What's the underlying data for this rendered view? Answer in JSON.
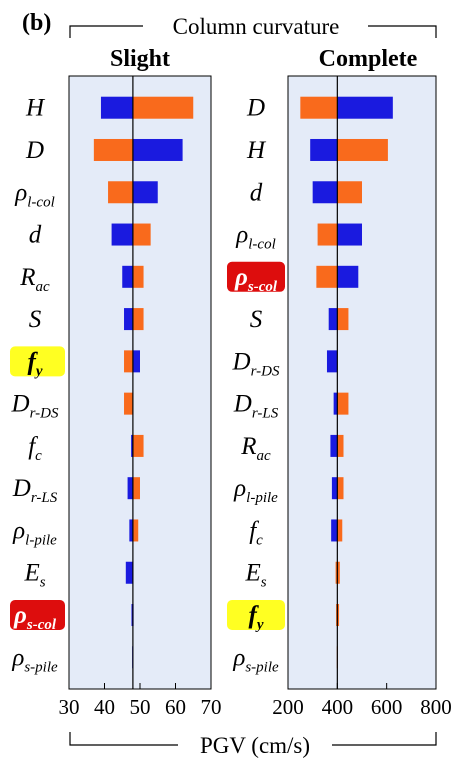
{
  "panel_label": "(b)",
  "group_title": "Column curvature",
  "shared_xlabel": "PGV (cm/s)",
  "colors": {
    "panel_bg": "#e4ebf8",
    "blue": "#1a1adf",
    "orange": "#f96a1c",
    "highlight_yellow": "#ffff22",
    "highlight_red": "#dd0d0d"
  },
  "chart_data": [
    {
      "type": "tornado",
      "title": "Slight",
      "xticks": [
        30,
        40,
        50,
        60,
        70
      ],
      "xlim": [
        30,
        70
      ],
      "baseline": 48,
      "parameters": [
        {
          "label": "H",
          "low": 39,
          "high": 65,
          "low_color": "blue",
          "high_color": "orange"
        },
        {
          "label": "D",
          "low": 37,
          "high": 62,
          "low_color": "orange",
          "high_color": "blue"
        },
        {
          "label": "ρl-col",
          "low": 41,
          "high": 55,
          "low_color": "orange",
          "high_color": "blue"
        },
        {
          "label": "d",
          "low": 42,
          "high": 53,
          "low_color": "blue",
          "high_color": "orange"
        },
        {
          "label": "Rac",
          "low": 45,
          "high": 51,
          "low_color": "blue",
          "high_color": "orange"
        },
        {
          "label": "S",
          "low": 45.5,
          "high": 51,
          "low_color": "blue",
          "high_color": "orange"
        },
        {
          "label": "fy",
          "low": 45.5,
          "high": 50,
          "low_color": "orange",
          "high_color": "blue",
          "highlight": "yellow"
        },
        {
          "label": "Dr-DS",
          "low": 45.5,
          "high": 48,
          "low_color": "orange",
          "high_color": "orange"
        },
        {
          "label": "fc",
          "low": 47.5,
          "high": 51,
          "low_color": "blue",
          "high_color": "orange"
        },
        {
          "label": "Dr-LS",
          "low": 46.5,
          "high": 50,
          "low_color": "blue",
          "high_color": "orange"
        },
        {
          "label": "ρl-pile",
          "low": 47,
          "high": 49.5,
          "low_color": "blue",
          "high_color": "orange"
        },
        {
          "label": "Es",
          "low": 46,
          "high": 48,
          "low_color": "blue",
          "high_color": "blue"
        },
        {
          "label": "ρs-col",
          "low": 47.6,
          "high": 48.2,
          "low_color": "blue",
          "high_color": "blue",
          "highlight": "red"
        },
        {
          "label": "ρs-pile",
          "low": 47.8,
          "high": 48.1,
          "low_color": "blue",
          "high_color": "blue"
        }
      ]
    },
    {
      "type": "tornado",
      "title": "Complete",
      "xticks": [
        200,
        400,
        600,
        800
      ],
      "xlim": [
        200,
        800
      ],
      "baseline": 400,
      "parameters": [
        {
          "label": "D",
          "low": 250,
          "high": 625,
          "low_color": "orange",
          "high_color": "blue"
        },
        {
          "label": "H",
          "low": 290,
          "high": 605,
          "low_color": "blue",
          "high_color": "orange"
        },
        {
          "label": "d",
          "low": 300,
          "high": 500,
          "low_color": "blue",
          "high_color": "orange"
        },
        {
          "label": "ρl-col",
          "low": 320,
          "high": 500,
          "low_color": "orange",
          "high_color": "blue"
        },
        {
          "label": "ρs-col",
          "low": 315,
          "high": 485,
          "low_color": "orange",
          "high_color": "blue",
          "highlight": "red"
        },
        {
          "label": "S",
          "low": 365,
          "high": 445,
          "low_color": "blue",
          "high_color": "orange"
        },
        {
          "label": "Dr-DS",
          "low": 358,
          "high": 395,
          "low_color": "blue",
          "high_color": "orange"
        },
        {
          "label": "Dr-LS",
          "low": 385,
          "high": 445,
          "low_color": "blue",
          "high_color": "orange"
        },
        {
          "label": "Rac",
          "low": 372,
          "high": 425,
          "low_color": "blue",
          "high_color": "orange"
        },
        {
          "label": "ρl-pile",
          "low": 378,
          "high": 425,
          "low_color": "blue",
          "high_color": "orange"
        },
        {
          "label": "fc",
          "low": 375,
          "high": 420,
          "low_color": "blue",
          "high_color": "orange"
        },
        {
          "label": "Es",
          "low": 393,
          "high": 410,
          "low_color": "orange",
          "high_color": "orange"
        },
        {
          "label": "fy",
          "low": 395,
          "high": 407,
          "low_color": "orange",
          "high_color": "orange",
          "highlight": "yellow"
        },
        {
          "label": "ρs-pile",
          "low": 398,
          "high": 402,
          "low_color": "orange",
          "high_color": "orange"
        }
      ]
    }
  ]
}
